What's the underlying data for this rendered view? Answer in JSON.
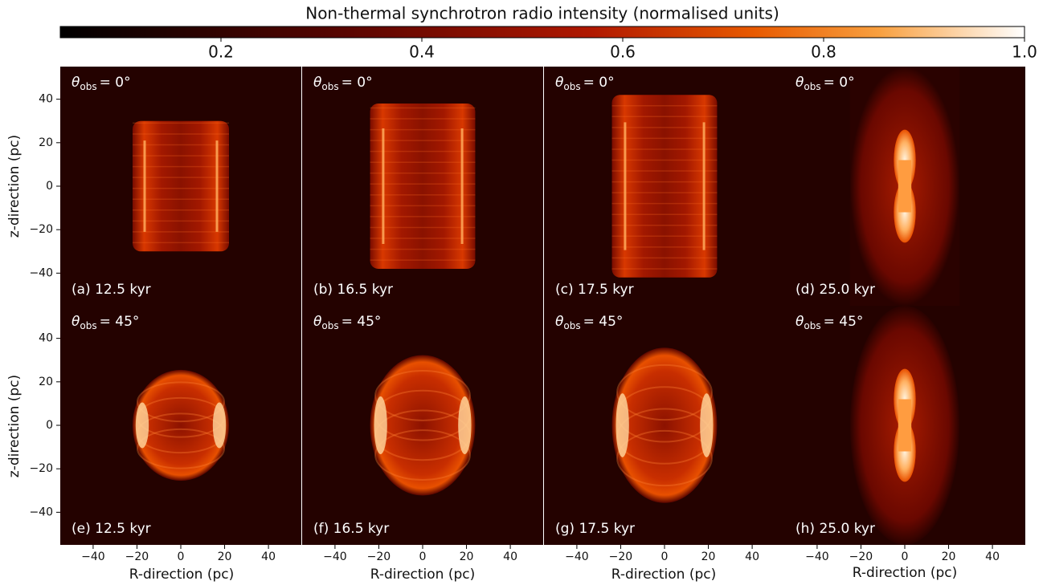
{
  "chart_data": {
    "type": "image-grid",
    "colorbar": {
      "title": "Non-thermal synchrotron radio intensity (normalised units)",
      "clim": [
        0.04,
        1.0
      ],
      "ticks": [
        0.2,
        0.4,
        0.6,
        0.8,
        {
          "value": 1,
          "label": "1.0"
        }
      ]
    },
    "xlabel": "R-direction (pc)",
    "ylabel": "z-direction (pc)",
    "xlim": [
      -55,
      55
    ],
    "ylim": [
      -55,
      55
    ],
    "xticks": [
      {
        "value": -40,
        "label": "−40"
      },
      {
        "value": -20,
        "label": "−20"
      },
      0,
      20,
      40
    ],
    "yticks": [
      {
        "value": -40,
        "label": "−40"
      },
      {
        "value": -20,
        "label": "−20"
      },
      0,
      20,
      40
    ],
    "panels": [
      {
        "label": "(a) 12.5 kyr",
        "angle": {
          "symbol": "θ",
          "sub": "obs",
          "text": "= 0°"
        }
      },
      {
        "label": "(b) 16.5 kyr",
        "angle": {
          "symbol": "θ",
          "sub": "obs",
          "text": "= 0°"
        }
      },
      {
        "label": "(c) 17.5 kyr",
        "angle": {
          "symbol": "θ",
          "sub": "obs",
          "text": "= 0°"
        }
      },
      {
        "label": "(d) 25.0 kyr",
        "angle": {
          "symbol": "θ",
          "sub": "obs",
          "text": "= 0°"
        }
      },
      {
        "label": "(e) 12.5 kyr",
        "angle": {
          "symbol": "θ",
          "sub": "obs",
          "text": "= 45°"
        }
      },
      {
        "label": "(f) 16.5 kyr",
        "angle": {
          "symbol": "θ",
          "sub": "obs",
          "text": "= 45°"
        }
      },
      {
        "label": "(g) 17.5 kyr",
        "angle": {
          "symbol": "θ",
          "sub": "obs",
          "text": "= 45°"
        }
      },
      {
        "label": "(h) 25.0 kyr",
        "angle": {
          "symbol": "θ",
          "sub": "obs",
          "text": "= 45°"
        }
      }
    ]
  }
}
